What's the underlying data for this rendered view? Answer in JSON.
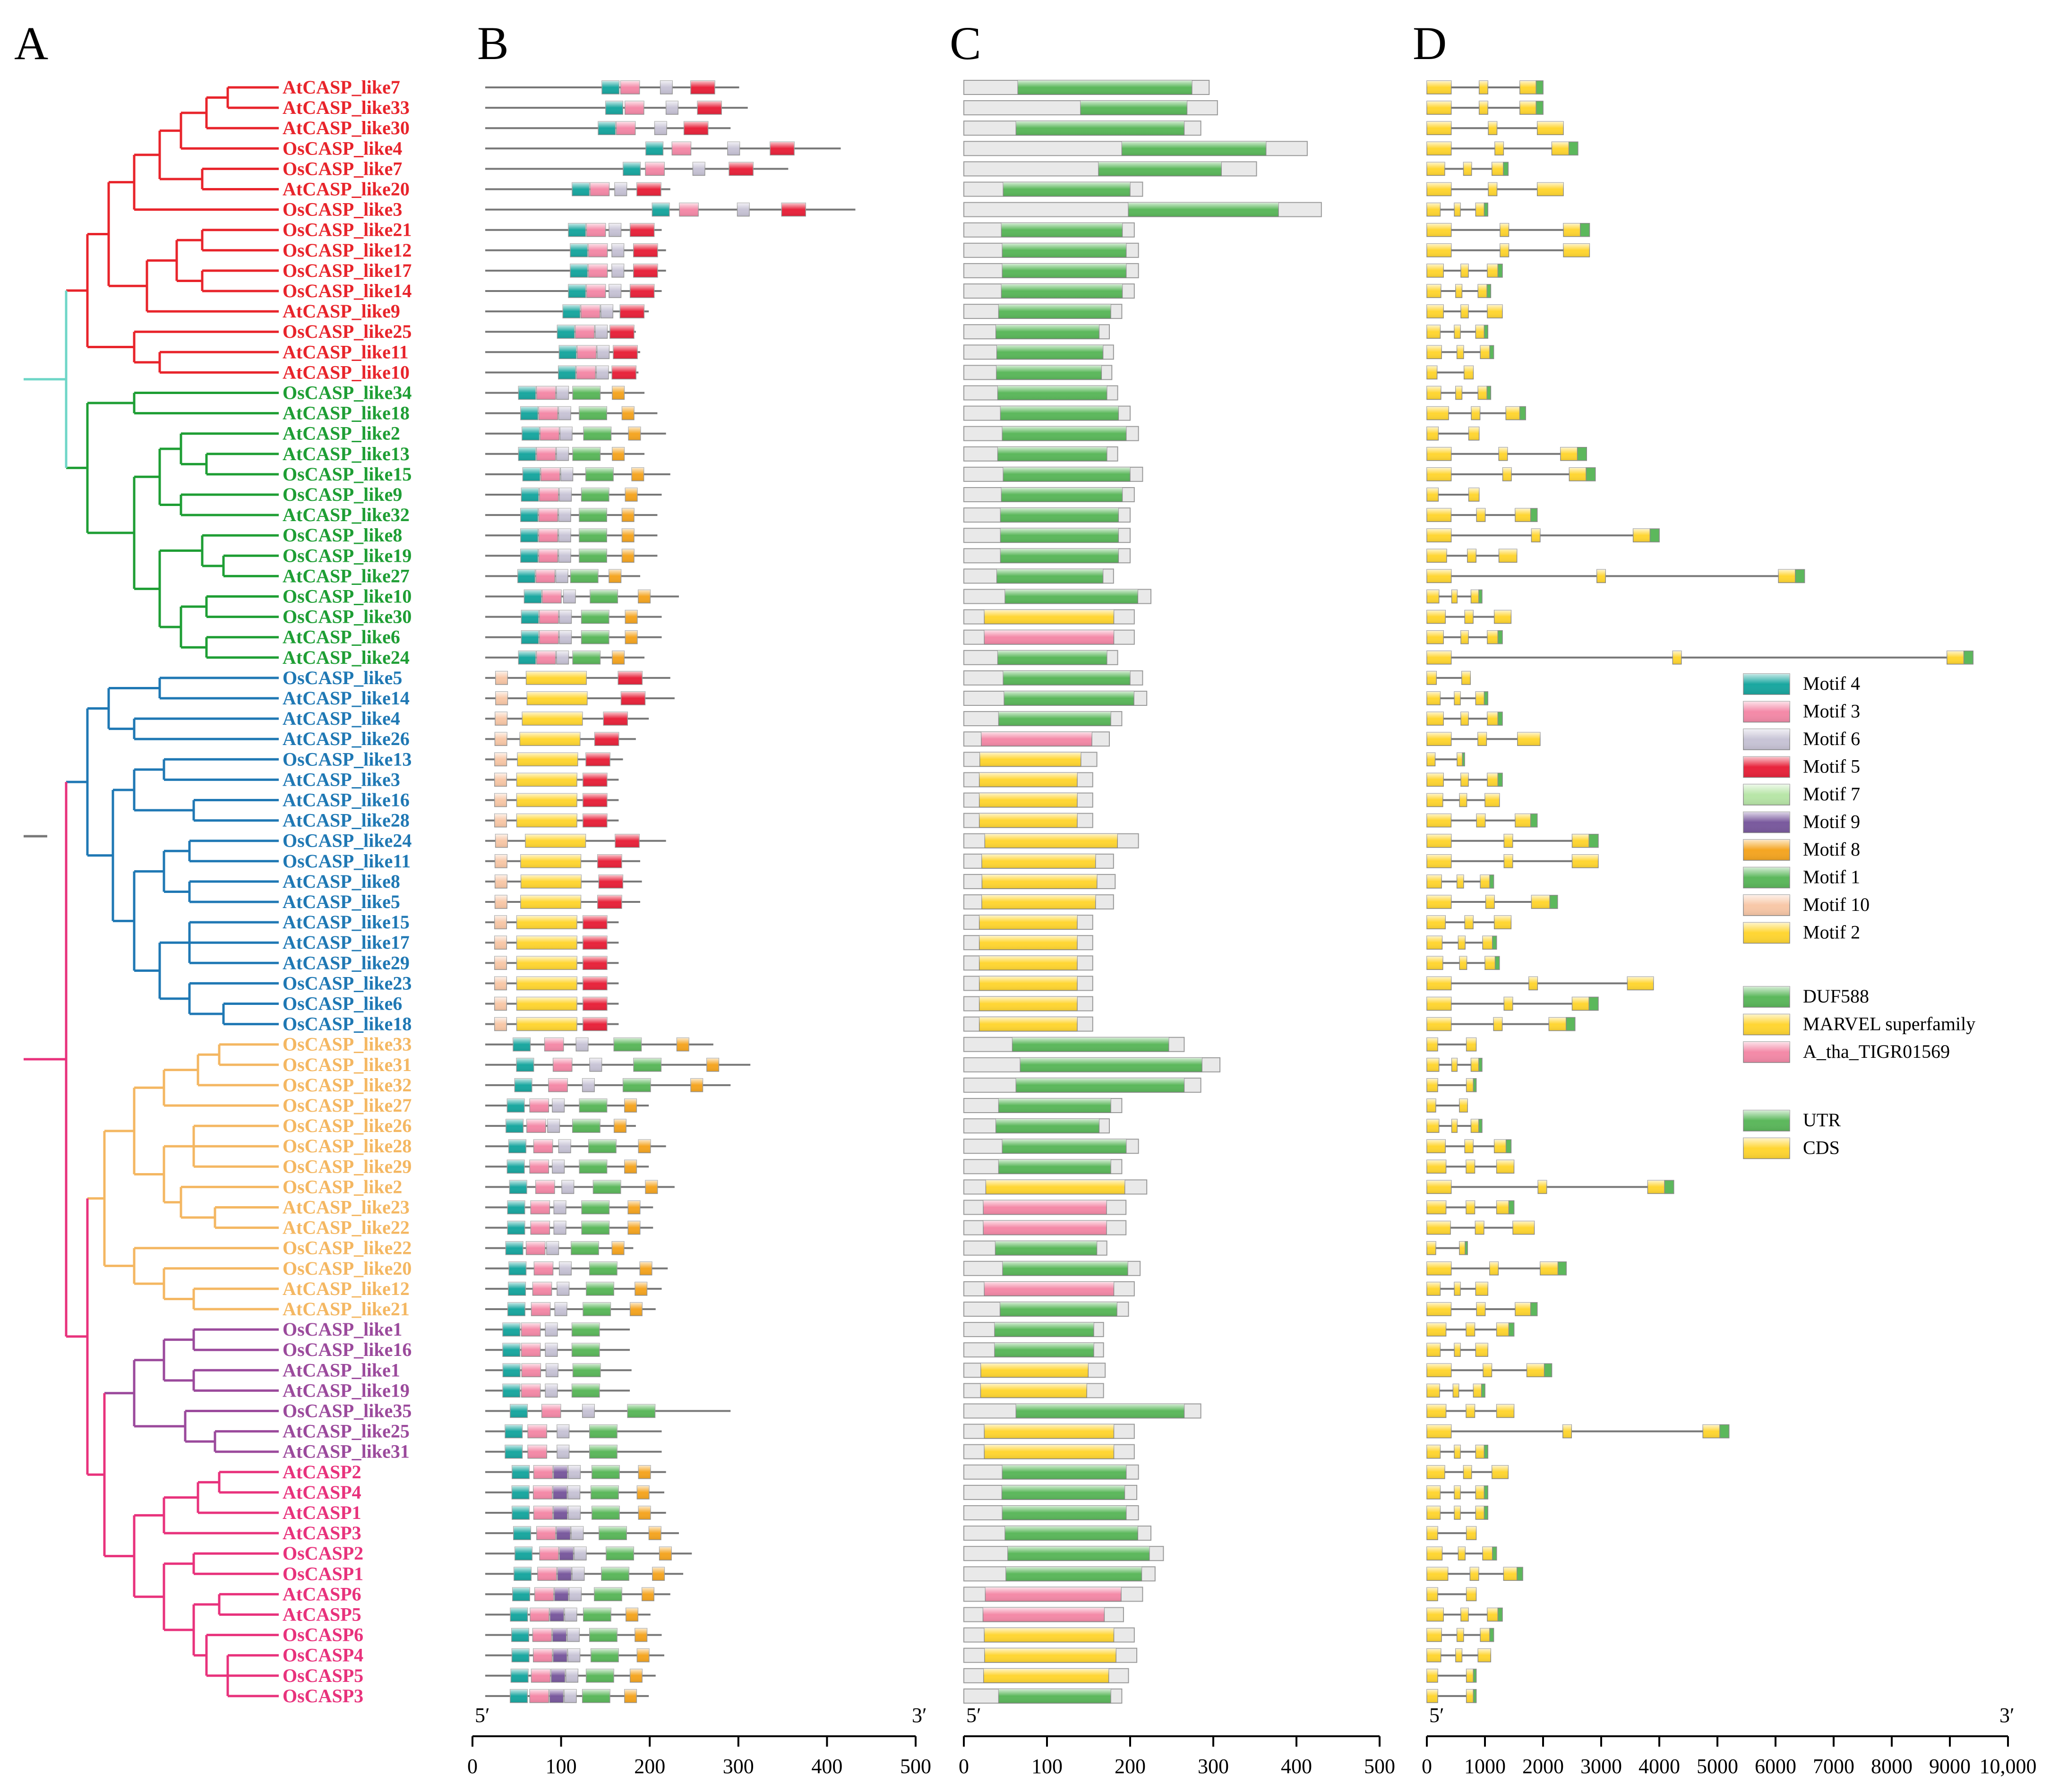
{
  "panels": [
    "A",
    "B",
    "C",
    "D"
  ],
  "clade_colors": {
    "red": "#e8242b",
    "green": "#1e9e34",
    "blue": "#1f78b4",
    "orange": "#f4b762",
    "purple": "#9b4a9c",
    "pink": "#e8327c",
    "teal": "#6fd6c7",
    "root": "#777777"
  },
  "genes": [
    {
      "name": "AtCASP_like7",
      "clade": "red",
      "len": 295
    },
    {
      "name": "AtCASP_like33",
      "clade": "red",
      "len": 305
    },
    {
      "name": "AtCASP_like30",
      "clade": "red",
      "len": 285
    },
    {
      "name": "OsCASP_like4",
      "clade": "red",
      "len": 413
    },
    {
      "name": "OsCASP_like7",
      "clade": "red",
      "len": 352
    },
    {
      "name": "AtCASP_like20",
      "clade": "red",
      "len": 215
    },
    {
      "name": "OsCASP_like3",
      "clade": "red",
      "len": 430
    },
    {
      "name": "OsCASP_like21",
      "clade": "red",
      "len": 205
    },
    {
      "name": "OsCASP_like12",
      "clade": "red",
      "len": 210
    },
    {
      "name": "OsCASP_like17",
      "clade": "red",
      "len": 210
    },
    {
      "name": "OsCASP_like14",
      "clade": "red",
      "len": 205
    },
    {
      "name": "AtCASP_like9",
      "clade": "red",
      "len": 190
    },
    {
      "name": "OsCASP_like25",
      "clade": "red",
      "len": 175
    },
    {
      "name": "AtCASP_like11",
      "clade": "red",
      "len": 180
    },
    {
      "name": "AtCASP_like10",
      "clade": "red",
      "len": 178
    },
    {
      "name": "OsCASP_like34",
      "clade": "green",
      "len": 185
    },
    {
      "name": "AtCASP_like18",
      "clade": "green",
      "len": 200
    },
    {
      "name": "AtCASP_like2",
      "clade": "green",
      "len": 210
    },
    {
      "name": "AtCASP_like13",
      "clade": "green",
      "len": 185
    },
    {
      "name": "OsCASP_like15",
      "clade": "green",
      "len": 215
    },
    {
      "name": "OsCASP_like9",
      "clade": "green",
      "len": 205
    },
    {
      "name": "AtCASP_like32",
      "clade": "green",
      "len": 200
    },
    {
      "name": "OsCASP_like8",
      "clade": "green",
      "len": 200
    },
    {
      "name": "OsCASP_like19",
      "clade": "green",
      "len": 200
    },
    {
      "name": "AtCASP_like27",
      "clade": "green",
      "len": 180
    },
    {
      "name": "OsCASP_like10",
      "clade": "green",
      "len": 225
    },
    {
      "name": "OsCASP_like30",
      "clade": "green",
      "len": 205
    },
    {
      "name": "AtCASP_like6",
      "clade": "green",
      "len": 205
    },
    {
      "name": "AtCASP_like24",
      "clade": "green",
      "len": 185
    },
    {
      "name": "OsCASP_like5",
      "clade": "blue",
      "len": 215
    },
    {
      "name": "AtCASP_like14",
      "clade": "blue",
      "len": 220
    },
    {
      "name": "AtCASP_like4",
      "clade": "blue",
      "len": 190
    },
    {
      "name": "AtCASP_like26",
      "clade": "blue",
      "len": 175
    },
    {
      "name": "OsCASP_like13",
      "clade": "blue",
      "len": 160
    },
    {
      "name": "AtCASP_like3",
      "clade": "blue",
      "len": 155
    },
    {
      "name": "AtCASP_like16",
      "clade": "blue",
      "len": 155
    },
    {
      "name": "AtCASP_like28",
      "clade": "blue",
      "len": 155
    },
    {
      "name": "OsCASP_like24",
      "clade": "blue",
      "len": 210
    },
    {
      "name": "OsCASP_like11",
      "clade": "blue",
      "len": 180
    },
    {
      "name": "AtCASP_like8",
      "clade": "blue",
      "len": 182
    },
    {
      "name": "AtCASP_like5",
      "clade": "blue",
      "len": 180
    },
    {
      "name": "AtCASP_like15",
      "clade": "blue",
      "len": 155
    },
    {
      "name": "AtCASP_like17",
      "clade": "blue",
      "len": 155
    },
    {
      "name": "AtCASP_like29",
      "clade": "blue",
      "len": 155
    },
    {
      "name": "OsCASP_like23",
      "clade": "blue",
      "len": 155
    },
    {
      "name": "OsCASP_like6",
      "clade": "blue",
      "len": 155
    },
    {
      "name": "OsCASP_like18",
      "clade": "blue",
      "len": 155
    },
    {
      "name": "OsCASP_like33",
      "clade": "orange",
      "len": 265
    },
    {
      "name": "OsCASP_like31",
      "clade": "orange",
      "len": 308
    },
    {
      "name": "OsCASP_like32",
      "clade": "orange",
      "len": 285
    },
    {
      "name": "OsCASP_like27",
      "clade": "orange",
      "len": 190
    },
    {
      "name": "OsCASP_like26",
      "clade": "orange",
      "len": 175
    },
    {
      "name": "OsCASP_like28",
      "clade": "orange",
      "len": 210
    },
    {
      "name": "OsCASP_like29",
      "clade": "orange",
      "len": 190
    },
    {
      "name": "OsCASP_like2",
      "clade": "orange",
      "len": 220
    },
    {
      "name": "AtCASP_like23",
      "clade": "orange",
      "len": 195
    },
    {
      "name": "AtCASP_like22",
      "clade": "orange",
      "len": 195
    },
    {
      "name": "OsCASP_like22",
      "clade": "orange",
      "len": 172
    },
    {
      "name": "OsCASP_like20",
      "clade": "orange",
      "len": 212
    },
    {
      "name": "AtCASP_like12",
      "clade": "orange",
      "len": 205
    },
    {
      "name": "AtCASP_like21",
      "clade": "orange",
      "len": 198
    },
    {
      "name": "OsCASP_like1",
      "clade": "purple",
      "len": 168
    },
    {
      "name": "OsCASP_like16",
      "clade": "purple",
      "len": 168
    },
    {
      "name": "AtCASP_like1",
      "clade": "purple",
      "len": 170
    },
    {
      "name": "AtCASP_like19",
      "clade": "purple",
      "len": 168
    },
    {
      "name": "OsCASP_like35",
      "clade": "purple",
      "len": 285
    },
    {
      "name": "AtCASP_like25",
      "clade": "purple",
      "len": 205
    },
    {
      "name": "AtCASP_like31",
      "clade": "purple",
      "len": 205
    },
    {
      "name": "AtCASP2",
      "clade": "pink",
      "len": 210
    },
    {
      "name": "AtCASP4",
      "clade": "pink",
      "len": 208
    },
    {
      "name": "AtCASP1",
      "clade": "pink",
      "len": 210
    },
    {
      "name": "AtCASP3",
      "clade": "pink",
      "len": 225
    },
    {
      "name": "OsCASP2",
      "clade": "pink",
      "len": 240
    },
    {
      "name": "OsCASP1",
      "clade": "pink",
      "len": 230
    },
    {
      "name": "AtCASP6",
      "clade": "pink",
      "len": 215
    },
    {
      "name": "AtCASP5",
      "clade": "pink",
      "len": 192
    },
    {
      "name": "OsCASP6",
      "clade": "pink",
      "len": 205
    },
    {
      "name": "OsCASP4",
      "clade": "pink",
      "len": 208
    },
    {
      "name": "OsCASP5",
      "clade": "pink",
      "len": 198
    },
    {
      "name": "OsCASP3",
      "clade": "pink",
      "len": 190
    }
  ],
  "motif_legend": [
    {
      "label": "Motif 4",
      "color": "#1aa7a0"
    },
    {
      "label": "Motif 3",
      "color": "#f48aa8"
    },
    {
      "label": "Motif 6",
      "color": "#c8c4d6"
    },
    {
      "label": "Motif 5",
      "color": "#e8243c"
    },
    {
      "label": "Motif 7",
      "color": "#b8e6a8"
    },
    {
      "label": "Motif 9",
      "color": "#7a5a9e"
    },
    {
      "label": "Motif 8",
      "color": "#f5a623"
    },
    {
      "label": "Motif 1",
      "color": "#5cb85c"
    },
    {
      "label": "Motif 10",
      "color": "#f8c8a8"
    },
    {
      "label": "Motif 2",
      "color": "#ffd633"
    }
  ],
  "domain_legend": [
    {
      "label": "DUF588",
      "color": "#5cb85c"
    },
    {
      "label": "MARVEL superfamily",
      "color": "#ffd633"
    },
    {
      "label": "A_tha_TIGR01569",
      "color": "#f48aa8"
    }
  ],
  "structure_legend": [
    {
      "label": "UTR",
      "color": "#5cb85c"
    },
    {
      "label": "CDS",
      "color": "#ffd633"
    }
  ],
  "axis_bc": {
    "ticks": [
      "0",
      "100",
      "200",
      "300",
      "400",
      "500"
    ],
    "min": 0,
    "max": 500
  },
  "axis_d": {
    "ticks": [
      "0",
      "1000",
      "2000",
      "3000",
      "4000",
      "5000",
      "6000",
      "7000",
      "8000",
      "9000",
      "10,000"
    ],
    "min": 0,
    "max": 10000
  },
  "end_labels": {
    "five": "5′",
    "three": "3′"
  }
}
